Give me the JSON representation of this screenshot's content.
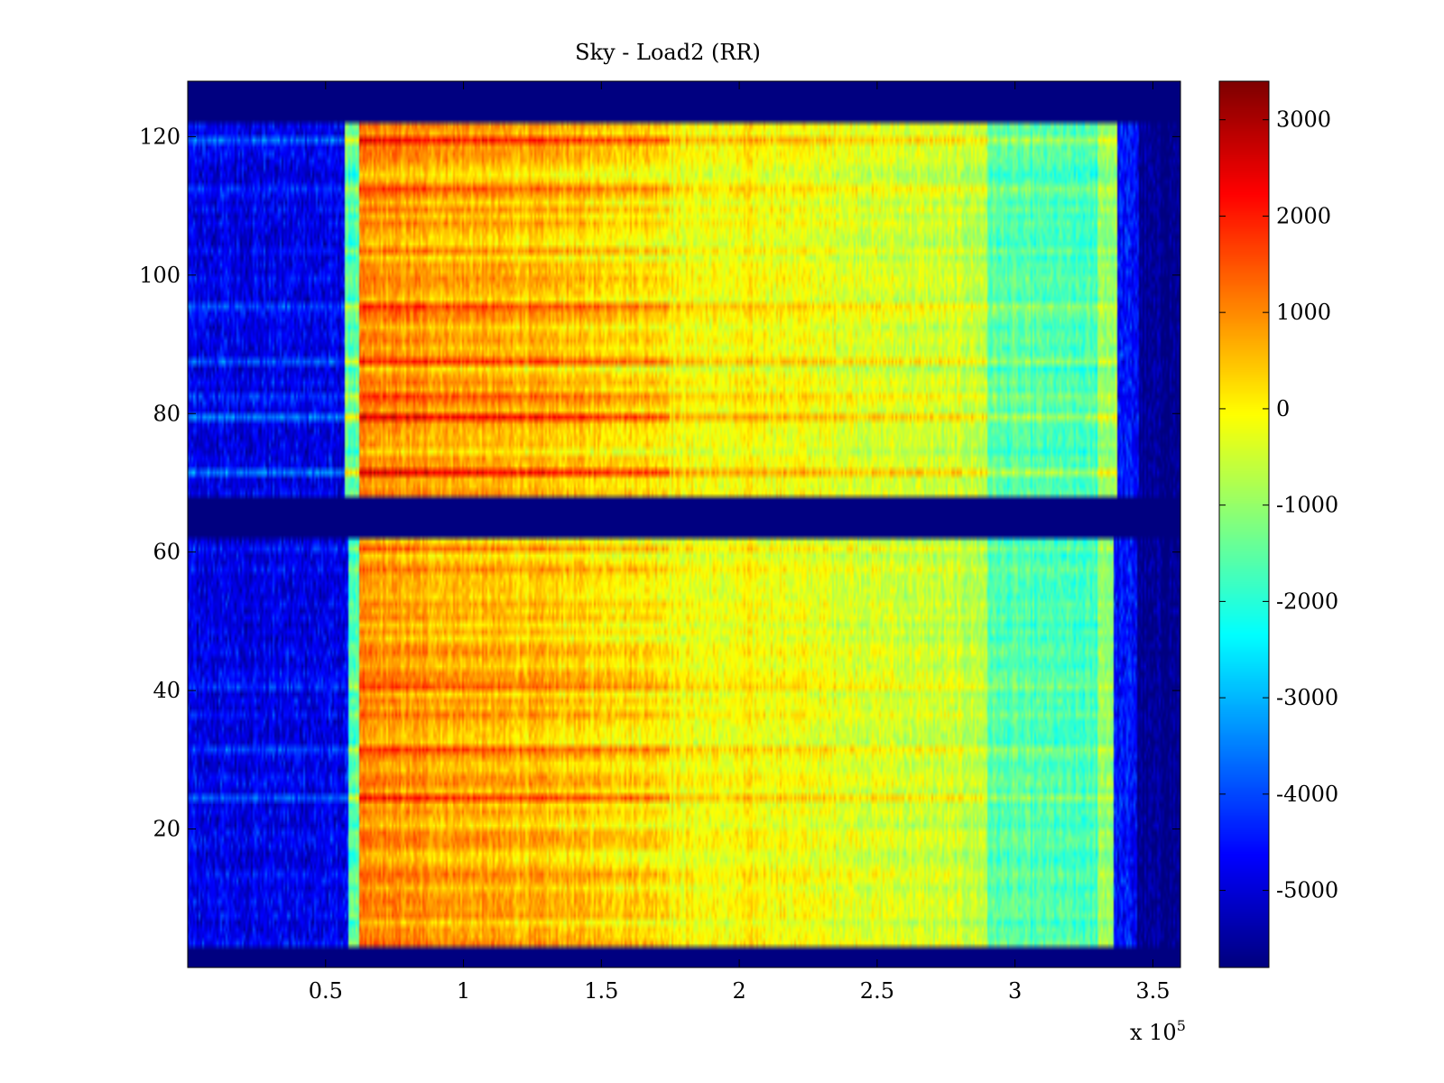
{
  "chart_data": {
    "type": "heatmap",
    "title": "Sky - Load2 (RR)",
    "xlabel": "",
    "ylabel": "",
    "xlim": [
      0,
      360000
    ],
    "ylim": [
      0,
      128
    ],
    "x_ticks": [
      50000,
      100000,
      150000,
      200000,
      250000,
      300000,
      350000
    ],
    "x_tick_labels": [
      "0.5",
      "1",
      "1.5",
      "2",
      "2.5",
      "3",
      "3.5"
    ],
    "x_exponent_label": "x 10",
    "x_exponent_power": "5",
    "y_ticks": [
      20,
      40,
      60,
      80,
      100,
      120
    ],
    "y_tick_labels": [
      "20",
      "40",
      "60",
      "80",
      "100",
      "120"
    ],
    "colorbar": {
      "colormap": "jet",
      "clim": [
        -5800,
        3400
      ],
      "ticks": [
        3000,
        2000,
        1000,
        0,
        -1000,
        -2000,
        -3000,
        -4000,
        -5000
      ],
      "tick_labels": [
        "3000",
        "2000",
        "1000",
        "0",
        "-1000",
        "-2000",
        "-3000",
        "-4000",
        "-5000"
      ]
    },
    "background_value": -5800,
    "data_blocks": [
      {
        "channels": [
          68,
          121
        ],
        "x_start": 57000,
        "x_end": 337000
      },
      {
        "channels": [
          3,
          61
        ],
        "x_start": 58000,
        "x_end": 336000
      }
    ],
    "strong_channels": [
      {
        "channel": 79,
        "level": 3000
      },
      {
        "channel": 71,
        "level": 2200
      },
      {
        "channel": 82,
        "level": 2000
      },
      {
        "channel": 24,
        "level": 2400
      },
      {
        "channel": 31,
        "level": 2200
      },
      {
        "channel": 87,
        "level": 1800
      },
      {
        "channel": 95,
        "level": 1800
      },
      {
        "channel": 112,
        "level": 1600
      },
      {
        "channel": 119,
        "level": 1600
      },
      {
        "channel": 40,
        "level": 1500
      },
      {
        "channel": 13,
        "level": 1400
      },
      {
        "channel": 60,
        "level": 1400
      }
    ],
    "grid": false,
    "colors": {
      "background": "#ffffff",
      "axes": "#000000"
    }
  }
}
